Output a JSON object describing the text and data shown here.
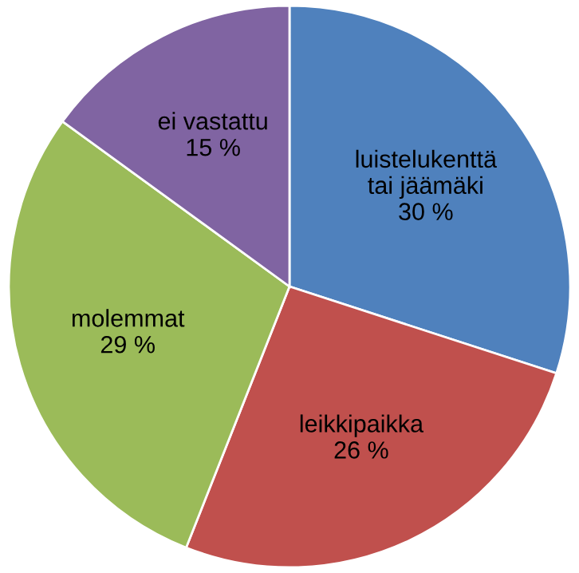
{
  "chart_data": {
    "type": "pie",
    "categories": [
      "luistelukenttä\ntai jäämäki",
      "leikkipaikka",
      "molemmat",
      "ei vastattu"
    ],
    "values": [
      30,
      26,
      29,
      15
    ],
    "value_labels": [
      "30 %",
      "26 %",
      "29 %",
      "15 %"
    ],
    "colors": [
      "#4f81bd",
      "#c0504d",
      "#9bbb59",
      "#8064a2"
    ],
    "legend": false
  }
}
